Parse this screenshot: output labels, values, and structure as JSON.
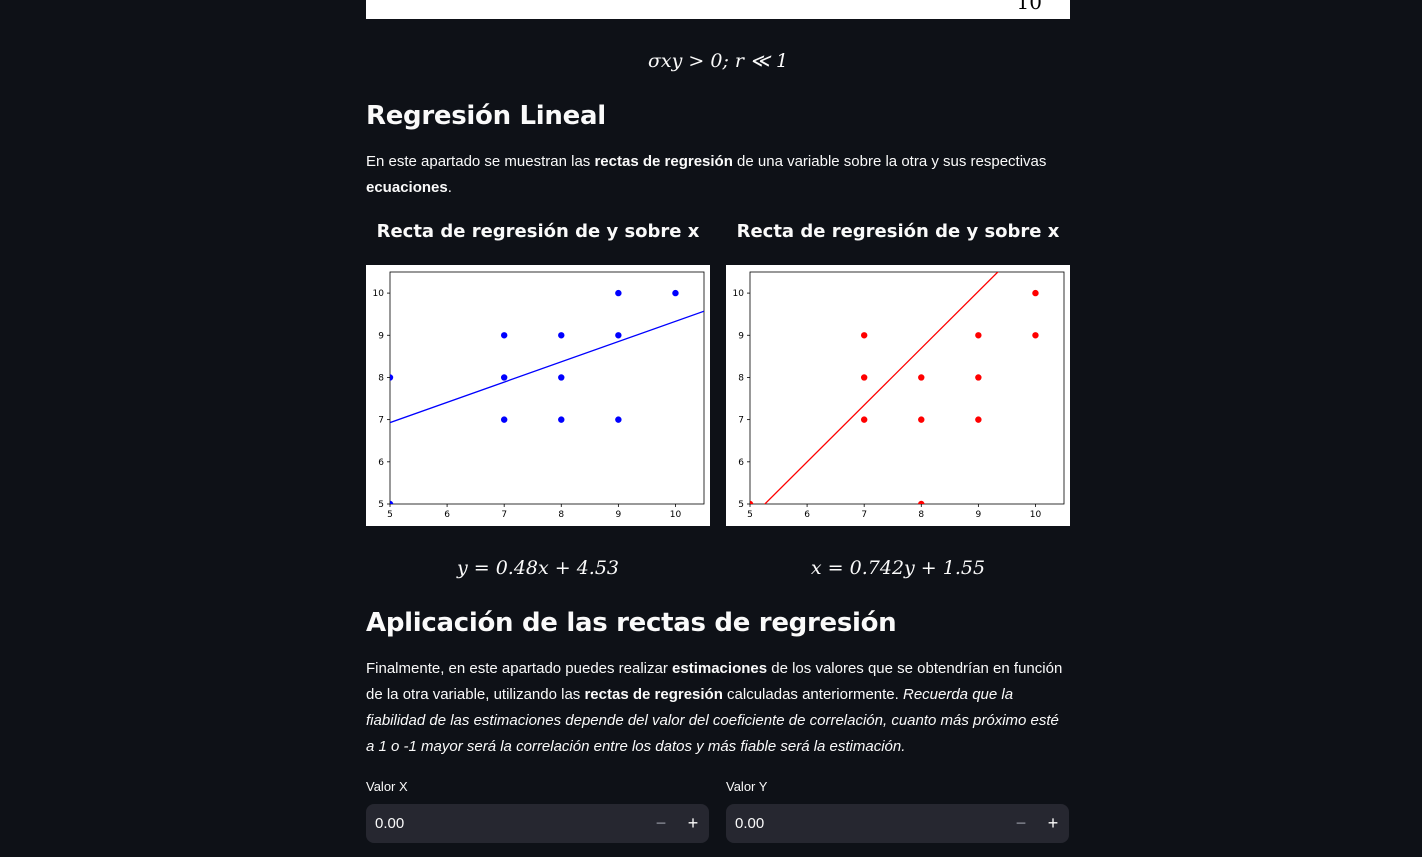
{
  "top_strip": {
    "partial_text": "10"
  },
  "covariance_formula": "σxy > 0; r ≪ 1",
  "section_regression": {
    "title": "Regresión Lineal",
    "intro_prefix": "En este apartado se muestran las ",
    "intro_bold1": "rectas de regresión",
    "intro_mid": " de una variable sobre la otra y sus respectivas ",
    "intro_bold2": "ecuaciones",
    "intro_suffix": "."
  },
  "left_column": {
    "title": "Recta de regresión de y sobre x",
    "equation": "y = 0.48x + 4.53"
  },
  "right_column": {
    "title": "Recta de regresión de y sobre x",
    "equation": "x = 0.742y + 1.55"
  },
  "section_application": {
    "title": "Aplicación de las rectas de regresión",
    "p_prefix": "Finalmente, en este apartado puedes realizar ",
    "p_bold1": "estimaciones",
    "p_mid": " de los valores que se obtendrían en función de la otra variable, utilizando las ",
    "p_bold2": "rectas de regresión",
    "p_mid2": " calculadas anteriormente. ",
    "p_italic": "Recuerda que la fiabilidad de las estimaciones depende del valor del coeficiente de correlación, cuanto más próximo esté a 1 o -1 mayor será la correlación entre los datos y más fiable será la estimación."
  },
  "inputs": {
    "x_label": "Valor X",
    "x_value": "0.00",
    "y_label": "Valor Y",
    "y_value": "0.00",
    "minus": "−",
    "plus": "+"
  },
  "chart_data": [
    {
      "type": "scatter",
      "title": "",
      "xlabel": "",
      "ylabel": "",
      "xlim": [
        5,
        10.5
      ],
      "ylim": [
        5,
        10.5
      ],
      "xticks": [
        5,
        6,
        7,
        8,
        9,
        10
      ],
      "yticks": [
        5,
        6,
        7,
        8,
        9,
        10
      ],
      "point_color": "#0000ff",
      "line_color": "#0000ff",
      "points": [
        [
          5,
          8
        ],
        [
          5,
          5
        ],
        [
          7,
          9
        ],
        [
          7,
          8
        ],
        [
          7,
          7
        ],
        [
          8,
          9
        ],
        [
          8,
          8
        ],
        [
          8,
          7
        ],
        [
          9,
          10
        ],
        [
          9,
          9
        ],
        [
          9,
          7
        ],
        [
          10,
          10
        ]
      ],
      "regression": {
        "slope": 0.48,
        "intercept": 4.53,
        "form": "y_on_x"
      }
    },
    {
      "type": "scatter",
      "title": "",
      "xlabel": "",
      "ylabel": "",
      "xlim": [
        5,
        10.5
      ],
      "ylim": [
        5,
        10.5
      ],
      "xticks": [
        5,
        6,
        7,
        8,
        9,
        10
      ],
      "yticks": [
        5,
        6,
        7,
        8,
        9,
        10
      ],
      "point_color": "#ff0000",
      "line_color": "#ff0000",
      "points": [
        [
          5,
          5
        ],
        [
          7,
          9
        ],
        [
          7,
          8
        ],
        [
          7,
          7
        ],
        [
          8,
          8
        ],
        [
          8,
          7
        ],
        [
          8,
          5
        ],
        [
          9,
          9
        ],
        [
          9,
          8
        ],
        [
          9,
          7
        ],
        [
          10,
          10
        ],
        [
          10,
          9
        ]
      ],
      "regression": {
        "slope": 0.742,
        "intercept": 1.55,
        "form": "x_on_y"
      }
    }
  ]
}
